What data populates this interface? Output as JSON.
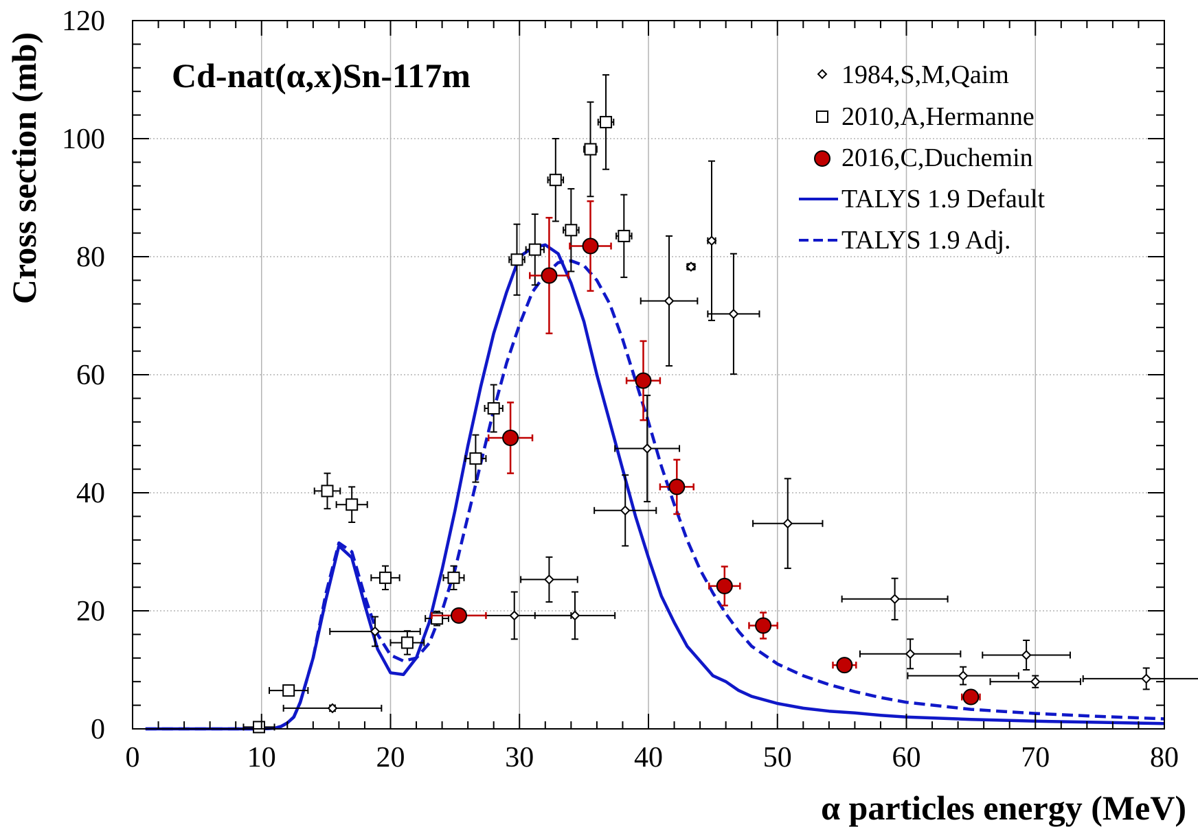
{
  "chart_data": {
    "type": "scatter",
    "title": "Cd-nat(α,x)Sn-117m",
    "xlabel": "α particles energy (MeV)",
    "ylabel": "Cross section (mb)",
    "xlim": [
      0,
      80
    ],
    "ylim": [
      0,
      120
    ],
    "x_ticks": [
      0,
      10,
      20,
      30,
      40,
      50,
      60,
      70,
      80
    ],
    "y_ticks": [
      0,
      20,
      40,
      60,
      80,
      100,
      120
    ],
    "grid": "vertical and horizontal gridlines at major ticks",
    "legend_position": "top-right",
    "colors": {
      "talys": "#1018c8",
      "duchemin_fill": "#c00000",
      "duchemin_error": "#c00000",
      "data_black": "#000000",
      "grid": "#b4b4b4"
    },
    "series": [
      {
        "name": "1984,S,M,Qaim",
        "marker": "diamond-open",
        "points": [
          {
            "x": 15.5,
            "y": 3.5,
            "xerr": 3.8,
            "yerr": 0.5
          },
          {
            "x": 18.8,
            "y": 16.5,
            "xerr": 3.5,
            "yerr": 2.5
          },
          {
            "x": 29.6,
            "y": 19.2,
            "xerr": 4.4,
            "yerr": 4.0
          },
          {
            "x": 32.3,
            "y": 25.3,
            "xerr": 2.2,
            "yerr": 3.8
          },
          {
            "x": 34.3,
            "y": 19.2,
            "xerr": 3.1,
            "yerr": 4.0
          },
          {
            "x": 38.2,
            "y": 37.0,
            "xerr": 2.4,
            "yerr": 6.0
          },
          {
            "x": 39.9,
            "y": 47.5,
            "xerr": 2.5,
            "yerr": 9.0
          },
          {
            "x": 41.6,
            "y": 72.5,
            "xerr": 2.2,
            "yerr": 11.0
          },
          {
            "x": 43.3,
            "y": 78.3,
            "xerr": 0.3,
            "yerr": 0.5
          },
          {
            "x": 44.9,
            "y": 82.7,
            "xerr": 0.3,
            "yerr": 13.5
          },
          {
            "x": 46.6,
            "y": 70.3,
            "xerr": 2.0,
            "yerr": 10.2
          },
          {
            "x": 50.8,
            "y": 34.8,
            "xerr": 2.7,
            "yerr": 7.6
          },
          {
            "x": 59.1,
            "y": 22.0,
            "xerr": 4.1,
            "yerr": 3.5
          },
          {
            "x": 60.3,
            "y": 12.7,
            "xerr": 3.9,
            "yerr": 2.5
          },
          {
            "x": 64.4,
            "y": 9.0,
            "xerr": 4.3,
            "yerr": 1.5
          },
          {
            "x": 69.3,
            "y": 12.5,
            "xerr": 3.4,
            "yerr": 2.5
          },
          {
            "x": 70.0,
            "y": 8.0,
            "xerr": 3.5,
            "yerr": 1.0
          },
          {
            "x": 78.6,
            "y": 8.5,
            "xerr": 4.9,
            "yerr": 1.8
          }
        ]
      },
      {
        "name": "2010,A,Hermanne",
        "marker": "square-open",
        "points": [
          {
            "x": 9.8,
            "y": 0.3,
            "xerr": 1.2,
            "yerr": 0.3
          },
          {
            "x": 12.1,
            "y": 6.5,
            "xerr": 1.5,
            "yerr": 0.8
          },
          {
            "x": 15.1,
            "y": 40.3,
            "xerr": 1.0,
            "yerr": 3.0
          },
          {
            "x": 17.0,
            "y": 38.0,
            "xerr": 1.2,
            "yerr": 3.0
          },
          {
            "x": 19.6,
            "y": 25.6,
            "xerr": 1.1,
            "yerr": 2.0
          },
          {
            "x": 21.3,
            "y": 14.6,
            "xerr": 1.3,
            "yerr": 2.0
          },
          {
            "x": 23.6,
            "y": 18.7,
            "xerr": 0.9,
            "yerr": 1.2
          },
          {
            "x": 24.9,
            "y": 25.6,
            "xerr": 0.8,
            "yerr": 2.0
          },
          {
            "x": 26.6,
            "y": 45.8,
            "xerr": 0.8,
            "yerr": 4.0
          },
          {
            "x": 28.0,
            "y": 54.3,
            "xerr": 0.7,
            "yerr": 4.0
          },
          {
            "x": 29.8,
            "y": 79.5,
            "xerr": 0.6,
            "yerr": 6.0
          },
          {
            "x": 31.2,
            "y": 81.2,
            "xerr": 0.7,
            "yerr": 6.0
          },
          {
            "x": 32.8,
            "y": 93.0,
            "xerr": 0.6,
            "yerr": 7.0
          },
          {
            "x": 34.0,
            "y": 84.5,
            "xerr": 0.6,
            "yerr": 7.0
          },
          {
            "x": 35.5,
            "y": 98.2,
            "xerr": 0.5,
            "yerr": 8.0
          },
          {
            "x": 36.7,
            "y": 102.8,
            "xerr": 0.6,
            "yerr": 8.0
          },
          {
            "x": 38.1,
            "y": 83.5,
            "xerr": 0.6,
            "yerr": 7.0
          }
        ]
      },
      {
        "name": "2016,C,Duchemin",
        "marker": "circle-filled",
        "points": [
          {
            "x": 25.3,
            "y": 19.2,
            "xerr": 2.1,
            "yerr": 1.0
          },
          {
            "x": 29.3,
            "y": 49.3,
            "xerr": 1.7,
            "yerr": 6.0
          },
          {
            "x": 32.3,
            "y": 76.8,
            "xerr": 1.5,
            "yerr": 9.8
          },
          {
            "x": 35.5,
            "y": 81.8,
            "xerr": 1.6,
            "yerr": 7.6
          },
          {
            "x": 39.6,
            "y": 59.0,
            "xerr": 1.3,
            "yerr": 6.7
          },
          {
            "x": 42.2,
            "y": 41.0,
            "xerr": 1.3,
            "yerr": 4.6
          },
          {
            "x": 45.9,
            "y": 24.2,
            "xerr": 1.2,
            "yerr": 3.3
          },
          {
            "x": 48.9,
            "y": 17.5,
            "xerr": 1.1,
            "yerr": 2.2
          },
          {
            "x": 55.2,
            "y": 10.8,
            "xerr": 0.9,
            "yerr": 1.0
          },
          {
            "x": 65.0,
            "y": 5.4,
            "xerr": 0.7,
            "yerr": 0.6
          }
        ]
      },
      {
        "name": "TALYS 1.9 Default",
        "style": "solid",
        "x": [
          1,
          2,
          4,
          6,
          8,
          10,
          11,
          11.5,
          12,
          12.5,
          13,
          14,
          15,
          16,
          17,
          18,
          19,
          20,
          21,
          22,
          23,
          24,
          25,
          26,
          27,
          28,
          29,
          30,
          31,
          32,
          33,
          34,
          35,
          36,
          37,
          38,
          39,
          40,
          41,
          42,
          43,
          44,
          45,
          46,
          47,
          48,
          50,
          52,
          54,
          56,
          58,
          60,
          65,
          70,
          75,
          80
        ],
        "y": [
          0,
          0,
          0,
          0,
          0,
          0,
          0.1,
          0.4,
          1.0,
          2.0,
          4.5,
          12.0,
          22.0,
          31.0,
          29.0,
          21.0,
          13.5,
          9.5,
          9.2,
          12.0,
          18.0,
          27.0,
          37.0,
          48.0,
          58.0,
          67.0,
          74.0,
          80.0,
          81.5,
          82.0,
          80.5,
          75.5,
          69.0,
          60.0,
          52.0,
          44.0,
          36.0,
          29.0,
          22.5,
          18.0,
          14.0,
          11.5,
          9.0,
          8.0,
          6.5,
          5.5,
          4.3,
          3.5,
          3.0,
          2.7,
          2.3,
          2.0,
          1.6,
          1.3,
          1.1,
          0.9
        ]
      },
      {
        "name": "TALYS 1.9 Adj.",
        "style": "dashed",
        "x": [
          1,
          2,
          4,
          6,
          8,
          10,
          11,
          11.5,
          12,
          12.5,
          13,
          14,
          15,
          16,
          17,
          18,
          19,
          20,
          21,
          22,
          23,
          24,
          25,
          26,
          27,
          28,
          29,
          30,
          31,
          32,
          33,
          34,
          35,
          36,
          37,
          38,
          39,
          40,
          41,
          42,
          43,
          44,
          45,
          46,
          47,
          48,
          50,
          52,
          54,
          56,
          58,
          60,
          65,
          70,
          75,
          80
        ],
        "y": [
          0,
          0,
          0,
          0,
          0,
          0,
          0.1,
          0.4,
          1.0,
          2.0,
          4.5,
          12.0,
          23.0,
          31.5,
          30.0,
          22.5,
          16.0,
          12.5,
          11.5,
          12.0,
          14.5,
          20.0,
          27.0,
          36.0,
          45.0,
          54.0,
          62.0,
          68.5,
          74.0,
          77.0,
          79.0,
          79.3,
          78.5,
          76.0,
          72.0,
          66.0,
          59.0,
          52.0,
          44.5,
          38.0,
          32.0,
          27.0,
          23.0,
          19.5,
          16.5,
          14.0,
          11.0,
          9.0,
          7.5,
          6.3,
          5.3,
          4.5,
          3.3,
          2.6,
          2.1,
          1.7
        ]
      }
    ]
  }
}
